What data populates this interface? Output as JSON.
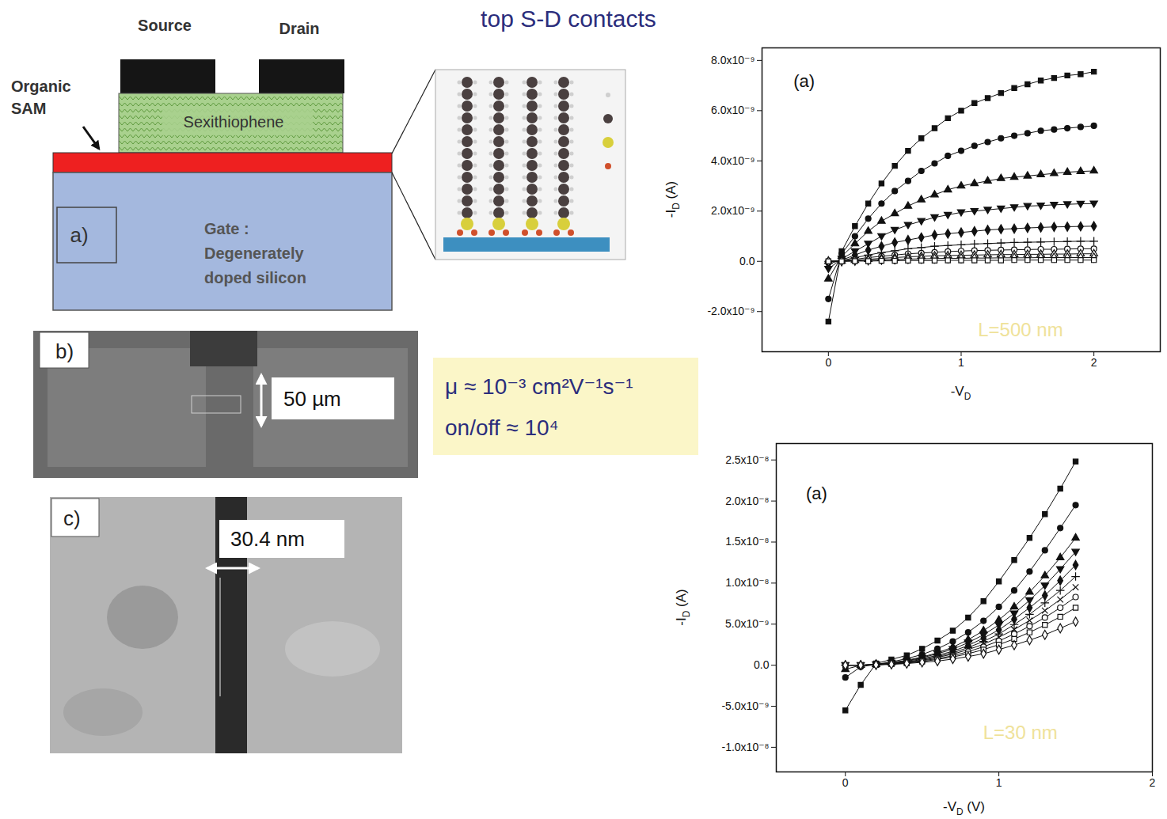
{
  "title": "top S-D contacts",
  "schematic": {
    "label": "a)",
    "source": "Source",
    "drain": "Drain",
    "sam": "Organic SAM",
    "semiconductor": "Sexithiophene",
    "gate": [
      "Gate :",
      "Degenerately",
      "doped silicon"
    ]
  },
  "image_b": {
    "label": "b)",
    "scale_bar": "50 µm"
  },
  "image_c": {
    "label": "c)",
    "scale_bar": "30.4 nm"
  },
  "properties": [
    "μ ≈ 10⁻³ cm²V⁻¹s⁻¹",
    "on/off ≈ 10⁴"
  ],
  "chart_data": [
    {
      "type": "line",
      "x_label": {
        "main": "-V",
        "sub": "D"
      },
      "y_label": {
        "main": "-I",
        "sub": "D",
        "rest": " (A)"
      },
      "annotations": [
        "(a)",
        "L=500 nm"
      ],
      "color": "#111111",
      "line_style": "solid",
      "grid": false,
      "xlim": [
        -0.5,
        2.5
      ],
      "xticks": [
        0,
        1,
        2
      ],
      "ylim": [
        -3.6e-09,
        8.5e-09
      ],
      "yticks": [
        {
          "value": -2e-09,
          "label": "-2.0x10⁻⁹"
        },
        {
          "value": 0,
          "label": "0.0"
        },
        {
          "value": 2e-09,
          "label": "2.0x10⁻⁹"
        },
        {
          "value": 4e-09,
          "label": "4.0x10⁻⁹"
        },
        {
          "value": 6e-09,
          "label": "6.0x10⁻⁹"
        },
        {
          "value": 8e-09,
          "label": "8.0x10⁻⁹"
        }
      ],
      "x": [
        0,
        0.1,
        0.2,
        0.3,
        0.4,
        0.5,
        0.6,
        0.7,
        0.8,
        0.9,
        1.0,
        1.1,
        1.2,
        1.3,
        1.4,
        1.5,
        1.6,
        1.7,
        1.8,
        1.9,
        2.0
      ],
      "series": [
        {
          "marker": "square",
          "values": [
            -2.4e-09,
            4e-10,
            1.4e-09,
            2.3e-09,
            3.1e-09,
            3.8e-09,
            4.4e-09,
            4.9e-09,
            5.3e-09,
            5.7e-09,
            6e-09,
            6.3e-09,
            6.5e-09,
            6.7e-09,
            6.9e-09,
            7.05e-09,
            7.2e-09,
            7.3e-09,
            7.4e-09,
            7.45e-09,
            7.55e-09
          ]
        },
        {
          "marker": "circle",
          "values": [
            -1.5e-09,
            3e-10,
            1e-09,
            1.7e-09,
            2.3e-09,
            2.8e-09,
            3.2e-09,
            3.6e-09,
            3.9e-09,
            4.2e-09,
            4.4e-09,
            4.6e-09,
            4.75e-09,
            4.9e-09,
            5e-09,
            5.1e-09,
            5.2e-09,
            5.25e-09,
            5.3e-09,
            5.35e-09,
            5.4e-09
          ]
        },
        {
          "marker": "triangle",
          "values": [
            -7e-10,
            2e-10,
            7e-10,
            1.2e-09,
            1.6e-09,
            1.9e-09,
            2.2e-09,
            2.45e-09,
            2.65e-09,
            2.85e-09,
            3e-09,
            3.1e-09,
            3.2e-09,
            3.3e-09,
            3.35e-09,
            3.4e-09,
            3.45e-09,
            3.5e-09,
            3.55e-09,
            3.58e-09,
            3.6e-09
          ]
        },
        {
          "marker": "triangle-down",
          "values": [
            -3e-10,
            1e-10,
            4e-10,
            7e-10,
            1e-09,
            1.25e-09,
            1.45e-09,
            1.6e-09,
            1.75e-09,
            1.85e-09,
            1.95e-09,
            2e-09,
            2.05e-09,
            2.1e-09,
            2.15e-09,
            2.2e-09,
            2.22e-09,
            2.25e-09,
            2.27e-09,
            2.29e-09,
            2.3e-09
          ]
        },
        {
          "marker": "diamond",
          "values": [
            -1e-10,
            5e-11,
            2.5e-10,
            4.5e-10,
            6e-10,
            7.5e-10,
            8.5e-10,
            9.5e-10,
            1.05e-09,
            1.1e-09,
            1.15e-09,
            1.2e-09,
            1.25e-09,
            1.28e-09,
            1.3e-09,
            1.33e-09,
            1.35e-09,
            1.37e-09,
            1.38e-09,
            1.39e-09,
            1.4e-09
          ]
        },
        {
          "marker": "plus",
          "values": [
            0,
            3e-11,
            1.5e-10,
            2.5e-10,
            3.5e-10,
            4.2e-10,
            5e-10,
            5.5e-10,
            6e-10,
            6.3e-10,
            6.6e-10,
            6.9e-10,
            7.1e-10,
            7.3e-10,
            7.5e-10,
            7.6e-10,
            7.7e-10,
            7.8e-10,
            7.9e-10,
            8e-10,
            8e-10
          ]
        },
        {
          "marker": "circle-open",
          "values": [
            0,
            2e-11,
            8e-11,
            1.5e-10,
            2e-10,
            2.5e-10,
            3e-10,
            3.3e-10,
            3.6e-10,
            3.9e-10,
            4.1e-10,
            4.3e-10,
            4.4e-10,
            4.5e-10,
            4.6e-10,
            4.7e-10,
            4.8e-10,
            4.8e-10,
            4.9e-10,
            5e-10,
            5e-10
          ]
        },
        {
          "marker": "triangle-open",
          "values": [
            0,
            1e-11,
            4e-11,
            8e-11,
            1.2e-10,
            1.5e-10,
            1.8e-10,
            2e-10,
            2.2e-10,
            2.3e-10,
            2.4e-10,
            2.5e-10,
            2.6e-10,
            2.7e-10,
            2.7e-10,
            2.8e-10,
            2.8e-10,
            2.9e-10,
            2.9e-10,
            3e-10,
            3e-10
          ]
        },
        {
          "marker": "diamond-open",
          "values": [
            0,
            0,
            2e-11,
            4e-11,
            6e-11,
            8e-11,
            9e-11,
            1e-10,
            1.1e-10,
            1.2e-10,
            1.2e-10,
            1.3e-10,
            1.3e-10,
            1.4e-10,
            1.4e-10,
            1.4e-10,
            1.5e-10,
            1.5e-10,
            1.5e-10,
            1.5e-10,
            1.5e-10
          ]
        },
        {
          "marker": "square-open",
          "values": [
            0,
            0,
            1e-11,
            1e-11,
            2e-11,
            2e-11,
            3e-11,
            3e-11,
            3e-11,
            4e-11,
            4e-11,
            4e-11,
            4e-11,
            4e-11,
            5e-11,
            5e-11,
            5e-11,
            5e-11,
            5e-11,
            5e-11,
            5e-11
          ]
        }
      ]
    },
    {
      "type": "line",
      "x_label": {
        "main": "-V",
        "sub": "D",
        "rest": " (V)"
      },
      "y_label": {
        "main": "-I",
        "sub": "D",
        "rest": " (A)"
      },
      "annotations": [
        "(a)",
        "L=30 nm"
      ],
      "color": "#111111",
      "line_style": "solid",
      "grid": false,
      "xlim": [
        -0.45,
        2
      ],
      "xticks": [
        0,
        1,
        2
      ],
      "ylim": [
        -1.3e-08,
        2.7e-08
      ],
      "yticks": [
        {
          "value": -1e-08,
          "label": "-1.0x10⁻⁸"
        },
        {
          "value": -5e-09,
          "label": "-5.0x10⁻⁹"
        },
        {
          "value": 0,
          "label": "0.0"
        },
        {
          "value": 5e-09,
          "label": "5.0x10⁻⁹"
        },
        {
          "value": 1e-08,
          "label": "1.0x10⁻⁸"
        },
        {
          "value": 1.5e-08,
          "label": "1.5x10⁻⁸"
        },
        {
          "value": 2e-08,
          "label": "2.0x10⁻⁸"
        },
        {
          "value": 2.5e-08,
          "label": "2.5x10⁻⁸"
        }
      ],
      "x": [
        0,
        0.1,
        0.2,
        0.3,
        0.4,
        0.5,
        0.6,
        0.7,
        0.8,
        0.9,
        1.0,
        1.1,
        1.2,
        1.3,
        1.4,
        1.5
      ],
      "series": [
        {
          "marker": "square",
          "values": [
            -5.5e-09,
            -2.4e-09,
            2e-10,
            7e-10,
            1.2e-09,
            2e-09,
            3e-09,
            4.2e-09,
            5.8e-09,
            7.8e-09,
            1.02e-08,
            1.28e-08,
            1.55e-08,
            1.84e-08,
            2.15e-08,
            2.48e-08
          ]
        },
        {
          "marker": "circle",
          "values": [
            -1.5e-09,
            -2e-10,
            1e-10,
            4e-10,
            8e-10,
            1.3e-09,
            2e-09,
            2.9e-09,
            4e-09,
            5.4e-09,
            7.1e-09,
            9.1e-09,
            1.14e-08,
            1.4e-08,
            1.67e-08,
            1.95e-08
          ]
        },
        {
          "marker": "triangle",
          "values": [
            -5e-10,
            0,
            1e-10,
            3e-10,
            6e-10,
            1e-09,
            1.5e-09,
            2.2e-09,
            3.1e-09,
            4.2e-09,
            5.5e-09,
            7.1e-09,
            8.9e-09,
            1.09e-08,
            1.31e-08,
            1.55e-08
          ]
        },
        {
          "marker": "triangle-down",
          "values": [
            0,
            0,
            1e-10,
            3e-10,
            5.5e-10,
            9e-10,
            1.4e-09,
            1.95e-09,
            2.75e-09,
            3.7e-09,
            4.9e-09,
            6.3e-09,
            7.9e-09,
            9.7e-09,
            1.17e-08,
            1.38e-08
          ]
        },
        {
          "marker": "diamond",
          "values": [
            0,
            0,
            1e-10,
            2.5e-10,
            5e-10,
            8e-10,
            1.2e-09,
            1.7e-09,
            2.4e-09,
            3.3e-09,
            4.3e-09,
            5.6e-09,
            7e-09,
            8.5e-09,
            1.03e-08,
            1.22e-08
          ]
        },
        {
          "marker": "plus",
          "values": [
            0,
            0,
            5e-11,
            2e-10,
            4e-10,
            7e-10,
            1.05e-09,
            1.5e-09,
            2.15e-09,
            2.9e-09,
            3.8e-09,
            4.95e-09,
            6.2e-09,
            7.6e-09,
            9.1e-09,
            1.08e-08
          ]
        },
        {
          "marker": "times",
          "values": [
            0,
            0,
            5e-11,
            2e-10,
            3.5e-10,
            6e-10,
            9.5e-10,
            1.35e-09,
            1.9e-09,
            2.55e-09,
            3.4e-09,
            4.35e-09,
            5.45e-09,
            6.65e-09,
            8e-09,
            9.5e-09
          ]
        },
        {
          "marker": "circle-open",
          "values": [
            0,
            0,
            5e-11,
            1.5e-10,
            3e-10,
            5.5e-10,
            8e-10,
            1.15e-09,
            1.65e-09,
            2.25e-09,
            2.95e-09,
            3.8e-09,
            4.75e-09,
            5.8e-09,
            7e-09,
            8.3e-09
          ]
        },
        {
          "marker": "square-open",
          "values": [
            0,
            0,
            5e-11,
            1.5e-10,
            2.5e-10,
            4.5e-10,
            7e-10,
            1e-09,
            1.4e-09,
            1.9e-09,
            2.5e-09,
            3.2e-09,
            4e-09,
            4.9e-09,
            5.9e-09,
            7e-09
          ]
        },
        {
          "marker": "diamond-open",
          "values": [
            0,
            0,
            3e-11,
            1e-10,
            2e-10,
            3.5e-10,
            5e-10,
            7.5e-10,
            1.05e-09,
            1.4e-09,
            1.9e-09,
            2.45e-09,
            3.05e-09,
            3.7e-09,
            4.5e-09,
            5.3e-09
          ]
        }
      ]
    }
  ]
}
